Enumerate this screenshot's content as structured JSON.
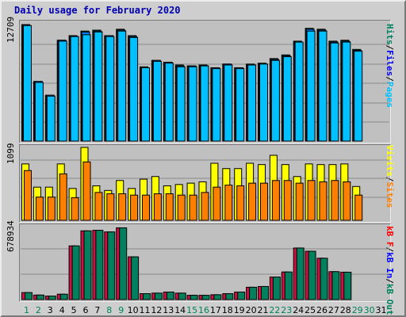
{
  "title": "Daily usage for February 2020",
  "colors": {
    "hits": "#00805c",
    "files": "#00c0ff",
    "pages": "#0080ff",
    "visits": "#ffff00",
    "sites": "#ff8000",
    "kbin": "#0040ff",
    "kbout": "#00805c",
    "kbf": "#ff0000",
    "weekday_label": "#000000",
    "weekend_label": "#00805c"
  },
  "legends": {
    "top": [
      {
        "text": "Hits",
        "color": "#00805c"
      },
      {
        "text": "/",
        "color": "#000000"
      },
      {
        "text": "Files",
        "color": "#0000ff"
      },
      {
        "text": "/",
        "color": "#000000"
      },
      {
        "text": "Pages",
        "color": "#00c0ff"
      }
    ],
    "mid": [
      {
        "text": "Visits",
        "color": "#ffff00"
      },
      {
        "text": "/",
        "color": "#000000"
      },
      {
        "text": "Sites",
        "color": "#ff8000"
      }
    ],
    "bottom": [
      {
        "text": "kB F",
        "color": "#ff0000"
      },
      {
        "text": "/",
        "color": "#000000"
      },
      {
        "text": "kB In",
        "color": "#0000ff"
      },
      {
        "text": "/",
        "color": "#000000"
      },
      {
        "text": "kB Out",
        "color": "#00805c"
      }
    ]
  },
  "chart_data": {
    "type": "bar",
    "title": "Daily usage for February 2020",
    "categories": [
      "1",
      "2",
      "3",
      "4",
      "5",
      "6",
      "7",
      "8",
      "9",
      "10",
      "11",
      "12",
      "13",
      "14",
      "15",
      "16",
      "17",
      "18",
      "19",
      "20",
      "21",
      "22",
      "23",
      "24",
      "25",
      "26",
      "27",
      "28",
      "29",
      "30",
      "31"
    ],
    "weekend_days": [
      "1",
      "2",
      "8",
      "9",
      "15",
      "16",
      "22",
      "23",
      "29",
      "30"
    ],
    "data_days": 29,
    "panels": [
      {
        "name": "hits-files-pages",
        "ymax_label": "12709",
        "ylim": [
          0,
          12709
        ],
        "series": [
          {
            "name": "Hits",
            "values": [
              12709,
              6500,
              5000,
              11000,
              11500,
              12000,
              12100,
              11500,
              12200,
              11500,
              8100,
              8800,
              8600,
              8300,
              8200,
              8300,
              8000,
              8400,
              8000,
              8400,
              8500,
              9000,
              9400,
              10900,
              12300,
              12200,
              10900,
              11000,
              10000
            ]
          },
          {
            "name": "Files",
            "values": [
              12600,
              6500,
              5000,
              11000,
              11400,
              11900,
              12000,
              11500,
              12100,
              11400,
              8000,
              8800,
              8600,
              8200,
              8200,
              8200,
              8000,
              8400,
              8000,
              8300,
              8400,
              8900,
              9300,
              10800,
              12200,
              12100,
              10800,
              10900,
              9900
            ]
          },
          {
            "name": "Pages",
            "values": [
              12600,
              6400,
              4900,
              10900,
              11400,
              11600,
              11900,
              11400,
              12000,
              11300,
              8000,
              8700,
              8500,
              8100,
              8100,
              8200,
              7900,
              8300,
              7900,
              8300,
              8400,
              8800,
              9200,
              10800,
              12000,
              12000,
              10700,
              10800,
              9800
            ]
          }
        ]
      },
      {
        "name": "visits-sites",
        "ymax_label": "1099",
        "ylim": [
          0,
          1099
        ],
        "series": [
          {
            "name": "Visits",
            "values": [
              850,
              500,
              500,
              850,
              480,
              1099,
              520,
              450,
              600,
              480,
              620,
              660,
              520,
              540,
              560,
              580,
              860,
              780,
              780,
              860,
              840,
              980,
              840,
              660,
              850,
              840,
              840,
              850,
              510
            ]
          },
          {
            "name": "Sites",
            "values": [
              750,
              350,
              350,
              700,
              340,
              880,
              420,
              400,
              400,
              380,
              380,
              400,
              400,
              380,
              380,
              420,
              500,
              530,
              520,
              560,
              560,
              600,
              600,
              560,
              600,
              580,
              600,
              580,
              380
            ]
          }
        ]
      },
      {
        "name": "kb",
        "ymax_label": "678934",
        "ylim": [
          0,
          678934
        ],
        "series": [
          {
            "name": "kB In",
            "values": [
              65000,
              42000,
              33000,
              50000,
              500000,
              640000,
              645000,
              630000,
              668000,
              398000,
              55000,
              60000,
              70000,
              60000,
              40000,
              40000,
              45000,
              55000,
              70000,
              115000,
              122000,
              210000,
              257000,
              480000,
              450000,
              385000,
              260000,
              255000,
              0
            ]
          },
          {
            "name": "kB Out",
            "values": [
              65000,
              42000,
              33000,
              50000,
              500000,
              640000,
              645000,
              630000,
              668000,
              398000,
              55000,
              60000,
              70000,
              60000,
              40000,
              40000,
              45000,
              55000,
              70000,
              115000,
              122000,
              210000,
              257000,
              480000,
              450000,
              385000,
              260000,
              255000,
              0
            ]
          }
        ]
      }
    ]
  }
}
